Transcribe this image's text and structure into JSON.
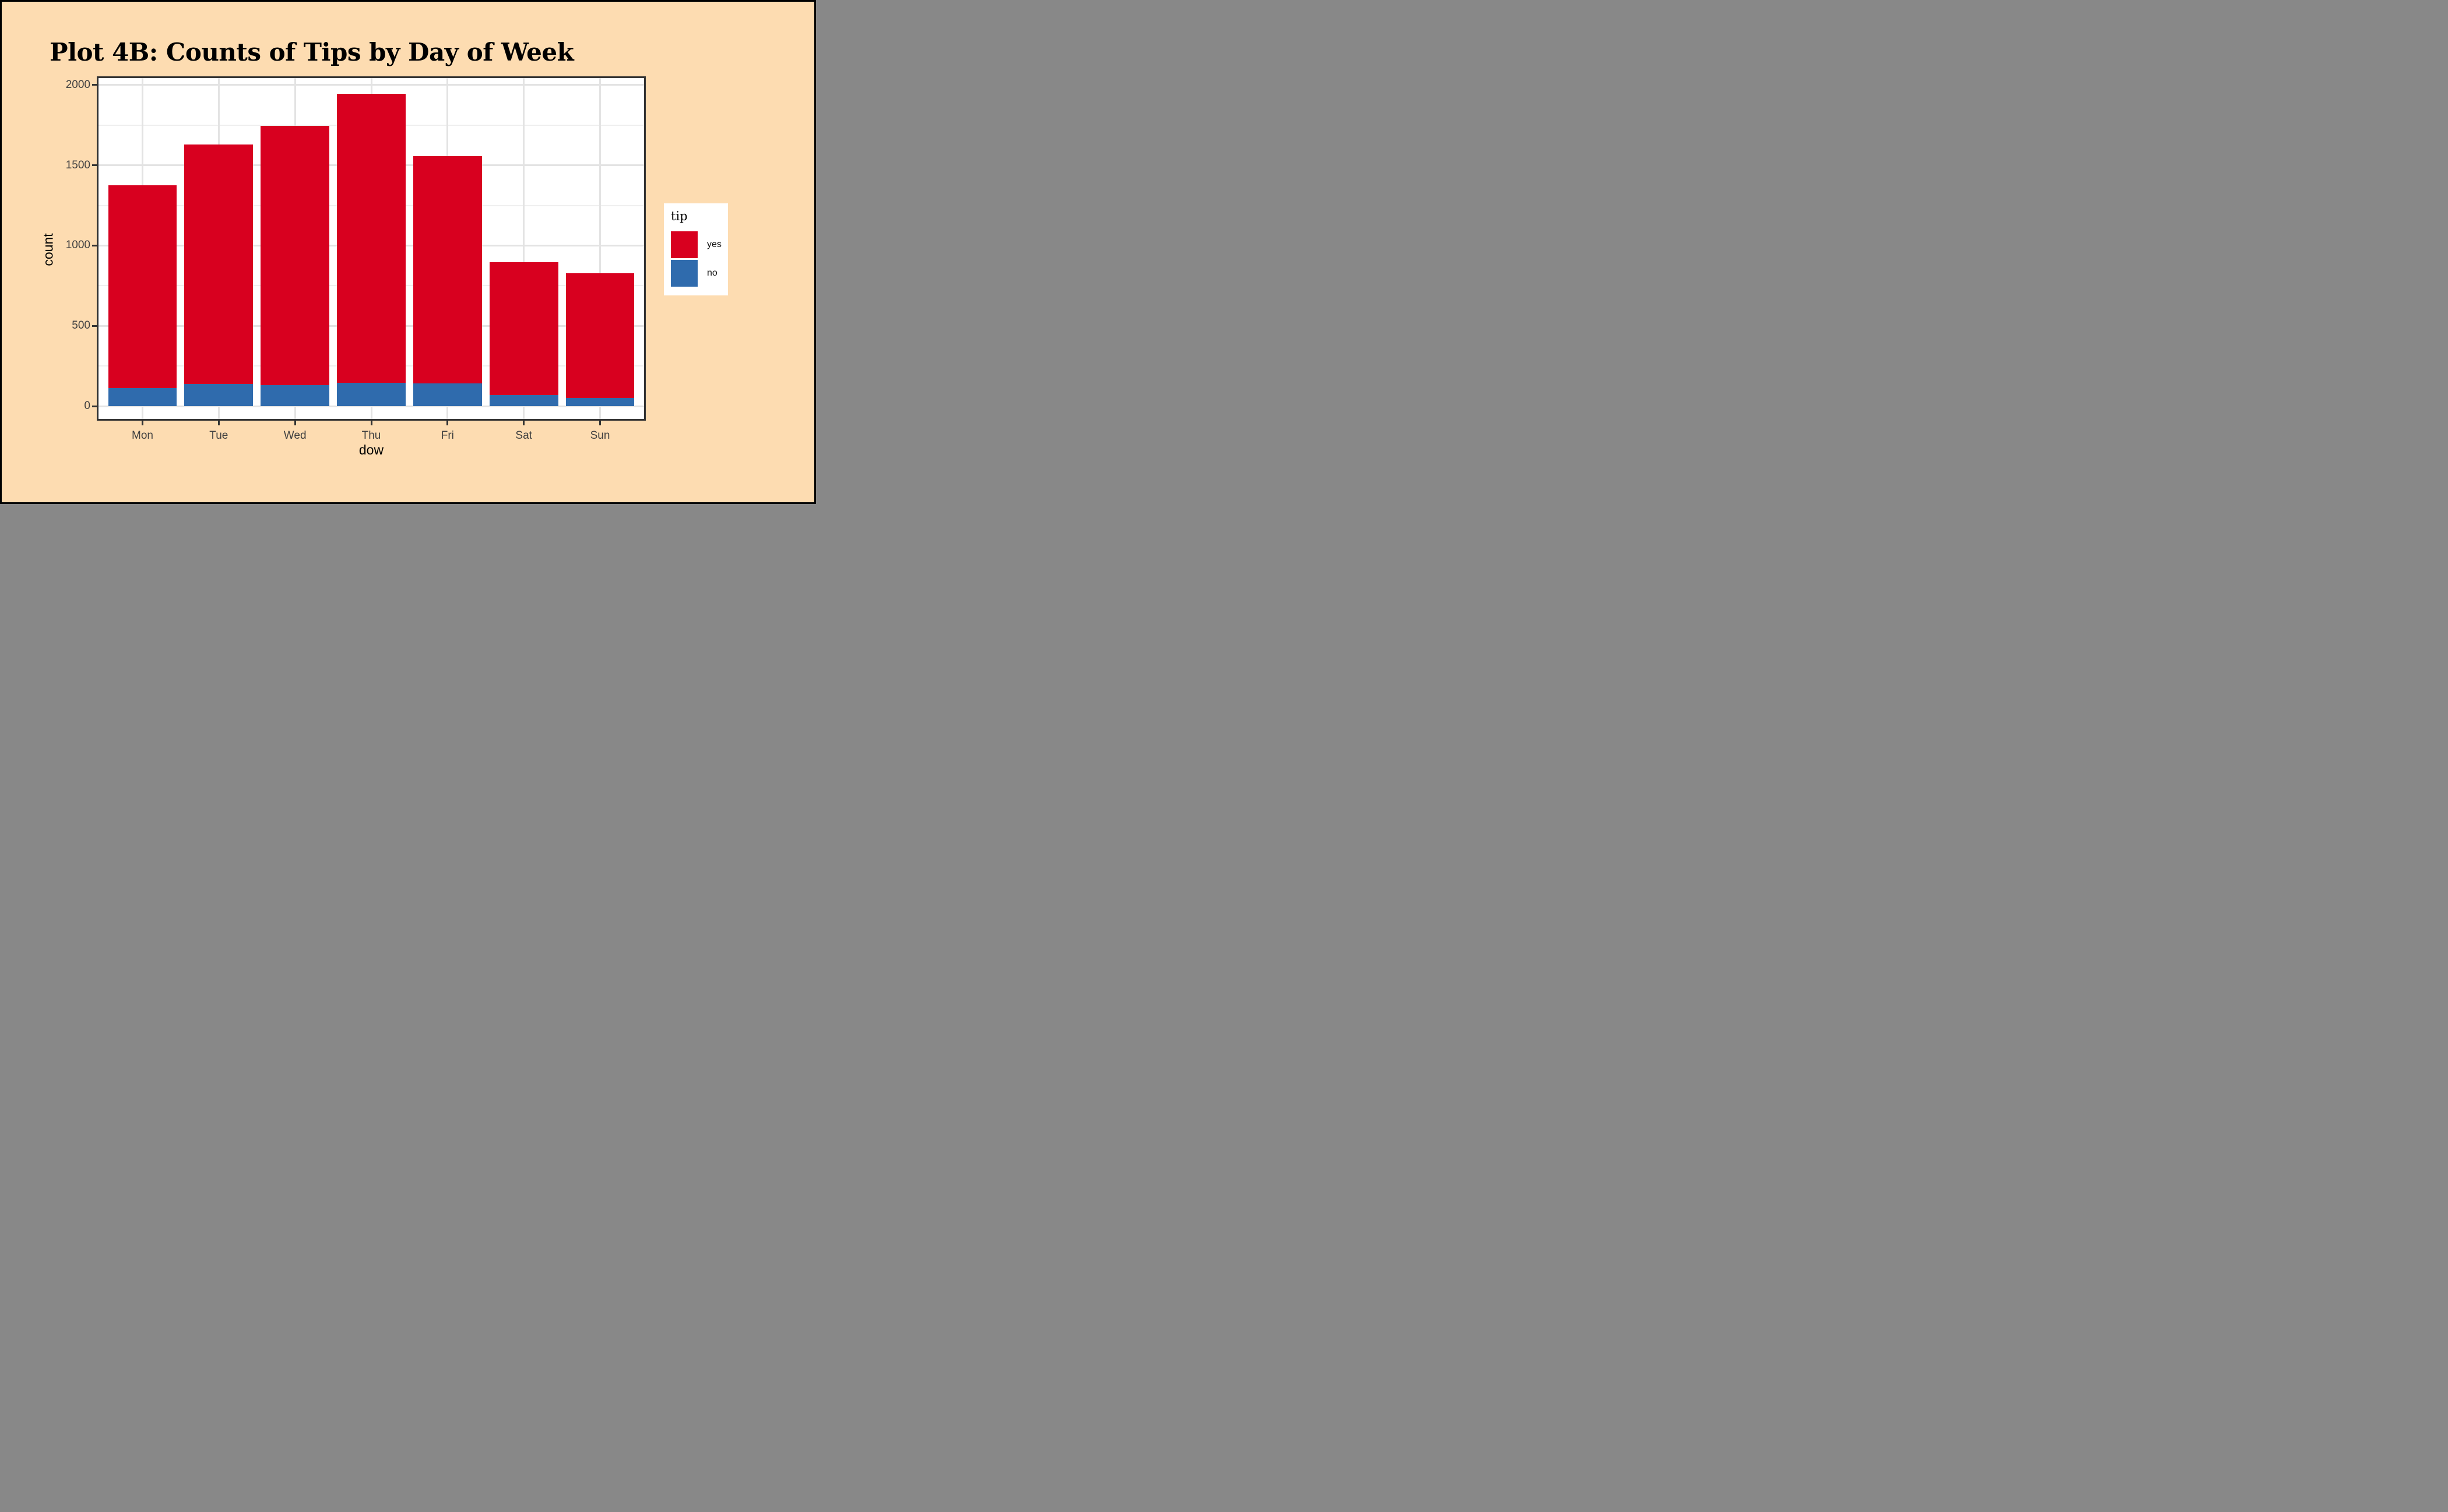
{
  "title": "Plot 4B: Counts of Tips by Day of Week",
  "axes": {
    "x_title": "dow",
    "y_title": "count",
    "x_tick_labels": [
      "Mon",
      "Tue",
      "Wed",
      "Thu",
      "Fri",
      "Sat",
      "Sun"
    ],
    "y_tick_labels": [
      "0",
      "500",
      "1000",
      "1500",
      "2000"
    ]
  },
  "legend": {
    "title": "tip",
    "items": [
      {
        "label": "yes",
        "color": "#D8001F"
      },
      {
        "label": "no",
        "color": "#2F6BAD"
      }
    ]
  },
  "colors": {
    "figure_background": "#FDDCB1",
    "panel_background": "#FFFFFF",
    "grid_major": "#E3E3E3",
    "grid_minor": "#EFEFEF",
    "axis_line": "#333333",
    "tick_label": "#404040",
    "bar_yes": "#D8001F",
    "bar_no": "#2F6BAD",
    "outer_border": "#000000"
  },
  "chart_data": {
    "type": "bar",
    "stacked": true,
    "title": "Plot 4B: Counts of Tips by Day of Week",
    "xlabel": "dow",
    "ylabel": "count",
    "categories": [
      "Mon",
      "Tue",
      "Wed",
      "Thu",
      "Fri",
      "Sat",
      "Sun"
    ],
    "series": [
      {
        "name": "no",
        "color": "#2F6BAD",
        "values": [
          113,
          138,
          131,
          144,
          143,
          69,
          50
        ]
      },
      {
        "name": "yes",
        "color": "#D8001F",
        "values": [
          1264,
          1492,
          1616,
          1799,
          1413,
          829,
          779
        ]
      }
    ],
    "stack_order_bottom_to_top": [
      "no",
      "yes"
    ],
    "totals": [
      1377,
      1630,
      1747,
      1943,
      1556,
      898,
      829
    ],
    "ylim": [
      0,
      2000
    ],
    "y_major_ticks": [
      0,
      500,
      1000,
      1500,
      2000
    ],
    "y_minor_ticks": [
      250,
      750,
      1250,
      1750
    ],
    "grid": "horizontal major+minor, vertical major at category centers",
    "legend_position": "right"
  }
}
